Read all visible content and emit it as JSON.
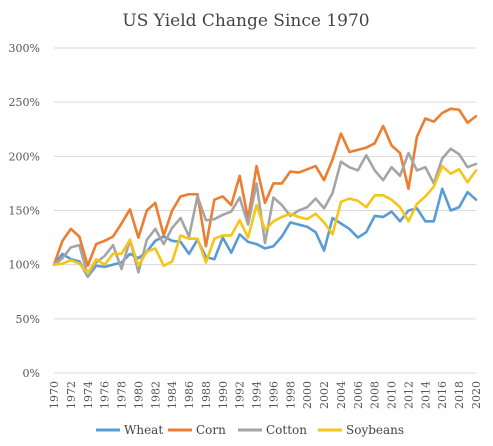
{
  "chart_data": {
    "type": "line",
    "title": "US Yield Change Since 1970",
    "xlabel": "",
    "ylabel": "",
    "ylim": [
      0,
      300
    ],
    "yticks": [
      "0%",
      "50%",
      "100%",
      "150%",
      "200%",
      "250%",
      "300%"
    ],
    "x": [
      1970,
      1971,
      1972,
      1973,
      1974,
      1975,
      1976,
      1977,
      1978,
      1979,
      1980,
      1981,
      1982,
      1983,
      1984,
      1985,
      1986,
      1987,
      1988,
      1989,
      1990,
      1991,
      1992,
      1993,
      1994,
      1995,
      1996,
      1997,
      1998,
      1999,
      2000,
      2001,
      2002,
      2003,
      2004,
      2005,
      2006,
      2007,
      2008,
      2009,
      2010,
      2011,
      2012,
      2013,
      2014,
      2015,
      2016,
      2017,
      2018,
      2019,
      2020
    ],
    "xtick_labels": [
      "1970",
      "1972",
      "1974",
      "1976",
      "1978",
      "1980",
      "1982",
      "1984",
      "1986",
      "1988",
      "1990",
      "1992",
      "1994",
      "1996",
      "1998",
      "2000",
      "2002",
      "2004",
      "2006",
      "2008",
      "2010",
      "2012",
      "2014",
      "2016",
      "2018",
      "2020"
    ],
    "grid": true,
    "legend_position": "bottom",
    "series": [
      {
        "name": "Wheat",
        "color": "#5b9bd5",
        "values": [
          100,
          110,
          105,
          103,
          89,
          99,
          98,
          100,
          102,
          110,
          106,
          112,
          122,
          126,
          122,
          121,
          110,
          123,
          107,
          105,
          125,
          111,
          128,
          121,
          119,
          115,
          117,
          126,
          139,
          137,
          135,
          130,
          113,
          143,
          138,
          133,
          125,
          130,
          145,
          144,
          149,
          140,
          150,
          152,
          140,
          140,
          170,
          150,
          153,
          167,
          160
        ]
      },
      {
        "name": "Corn",
        "color": "#ed7d31",
        "values": [
          100,
          122,
          133,
          126,
          99,
          119,
          122,
          126,
          138,
          151,
          125,
          150,
          157,
          127,
          150,
          163,
          165,
          165,
          117,
          160,
          163,
          155,
          182,
          142,
          191,
          157,
          175,
          175,
          186,
          185,
          188,
          191,
          178,
          197,
          221,
          204,
          206,
          208,
          212,
          228,
          210,
          203,
          170,
          218,
          235,
          232,
          240,
          244,
          243,
          231,
          237
        ]
      },
      {
        "name": "Cotton",
        "color": "#a5a5a5",
        "values": [
          100,
          106,
          116,
          118,
          90,
          102,
          108,
          118,
          96,
          123,
          93,
          123,
          133,
          119,
          134,
          143,
          126,
          163,
          141,
          142,
          146,
          149,
          162,
          137,
          175,
          120,
          162,
          155,
          145,
          150,
          153,
          161,
          152,
          166,
          195,
          190,
          187,
          201,
          187,
          178,
          190,
          182,
          203,
          187,
          190,
          175,
          198,
          207,
          202,
          190,
          193
        ]
      },
      {
        "name": "Soybeans",
        "color": "#f5c518",
        "values": [
          100,
          101,
          104,
          101,
          92,
          105,
          100,
          110,
          110,
          123,
          99,
          112,
          115,
          99,
          103,
          127,
          124,
          124,
          102,
          124,
          127,
          127,
          141,
          125,
          155,
          132,
          140,
          144,
          147,
          144,
          142,
          147,
          139,
          128,
          158,
          161,
          159,
          153,
          164,
          164,
          160,
          153,
          140,
          156,
          163,
          172,
          191,
          184,
          188,
          176,
          187
        ]
      }
    ]
  }
}
